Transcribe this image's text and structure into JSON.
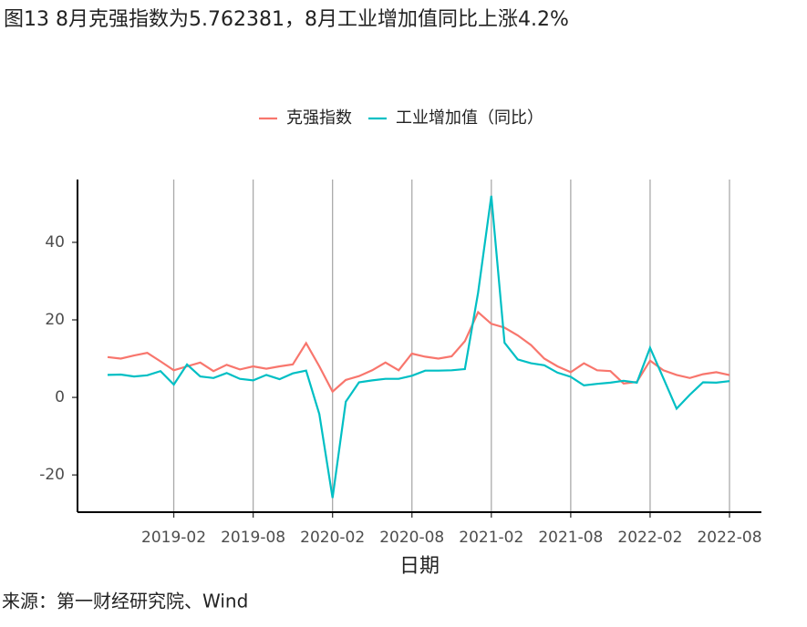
{
  "chart_data": {
    "type": "line",
    "title": "图13 8月克强指数为5.762381，8月工业增加值同比上涨4.2%",
    "x_label": "日期",
    "source": "来源：第一财经研究院、Wind",
    "x": [
      "2018-09",
      "2018-10",
      "2018-11",
      "2018-12",
      "2019-01",
      "2019-02",
      "2019-03",
      "2019-04",
      "2019-05",
      "2019-06",
      "2019-07",
      "2019-08",
      "2019-09",
      "2019-10",
      "2019-11",
      "2019-12",
      "2020-01",
      "2020-02",
      "2020-03",
      "2020-04",
      "2020-05",
      "2020-06",
      "2020-07",
      "2020-08",
      "2020-09",
      "2020-10",
      "2020-11",
      "2020-12",
      "2021-01",
      "2021-02",
      "2021-03",
      "2021-04",
      "2021-05",
      "2021-06",
      "2021-07",
      "2021-08",
      "2021-09",
      "2021-10",
      "2021-11",
      "2021-12",
      "2022-01",
      "2022-02",
      "2022-03",
      "2022-04",
      "2022-05",
      "2022-06",
      "2022-07",
      "2022-08"
    ],
    "xticks": [
      "2019-02",
      "2019-08",
      "2020-02",
      "2020-08",
      "2021-02",
      "2021-08",
      "2022-02",
      "2022-08"
    ],
    "ylim": [
      -29.6,
      56.2
    ],
    "yticks": [
      -20,
      0,
      20,
      40
    ],
    "grid": "x",
    "legend": "top",
    "series": [
      {
        "name": "克强指数",
        "color": "#f8766d",
        "values": [
          10.4,
          10.0,
          10.8,
          11.5,
          9.3,
          7.0,
          8.0,
          9.0,
          6.8,
          8.4,
          7.2,
          8.0,
          7.4,
          8.0,
          8.5,
          14.0,
          8.0,
          1.5,
          4.5,
          5.5,
          7.0,
          9.0,
          7.0,
          11.3,
          10.5,
          10.0,
          10.6,
          14.5,
          22.0,
          19.0,
          18.0,
          16.0,
          13.5,
          10.0,
          8.0,
          6.5,
          8.8,
          7.0,
          6.8,
          3.6,
          4.0,
          9.5,
          7.0,
          5.8,
          5.0,
          6.0,
          6.5,
          5.762381
        ]
      },
      {
        "name": "工业增加值（同比）",
        "color": "#00bfc4",
        "values": [
          5.8,
          5.9,
          5.4,
          5.7,
          6.8,
          3.3,
          8.5,
          5.4,
          5.0,
          6.3,
          4.8,
          4.4,
          5.8,
          4.7,
          6.2,
          6.9,
          -4.3,
          -25.9,
          -1.1,
          3.9,
          4.4,
          4.8,
          4.8,
          5.6,
          6.9,
          6.9,
          7.0,
          7.3,
          27.0,
          52.0,
          14.1,
          9.8,
          8.8,
          8.3,
          6.4,
          5.3,
          3.1,
          3.5,
          3.8,
          4.3,
          3.8,
          12.8,
          5.0,
          -2.9,
          0.7,
          3.9,
          3.8,
          4.2
        ]
      }
    ]
  }
}
